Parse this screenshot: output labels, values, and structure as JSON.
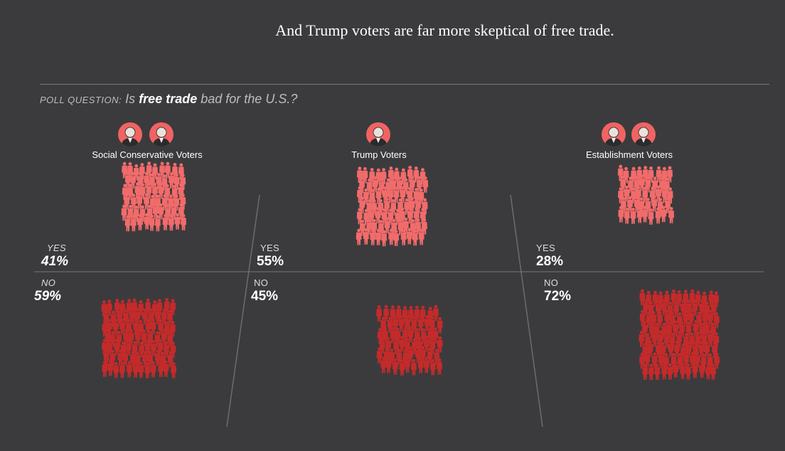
{
  "headline": "And Trump voters are far more skeptical of free trade.",
  "question": {
    "label": "POLL QUESTION:",
    "text_before": "Is",
    "bold": "free trade",
    "text_after": "bad for the U.S.?"
  },
  "colors": {
    "background": "#3b3b3d",
    "yes": "#f26b6b",
    "no": "#c52a2a",
    "divider": "#6c6c6f"
  },
  "chart_data": {
    "type": "pictogram",
    "title": "Is free trade bad for the U.S.?",
    "answers": [
      "YES",
      "NO"
    ],
    "groups": [
      {
        "name": "Social Conservative Voters",
        "portraits": 2,
        "yes_pct": 41,
        "no_pct": 59,
        "yes_label": "YES",
        "no_label": "NO",
        "yes_value": "41%",
        "no_value": "59%"
      },
      {
        "name": "Trump Voters",
        "portraits": 1,
        "yes_pct": 55,
        "no_pct": 45,
        "yes_label": "YES",
        "no_label": "NO",
        "yes_value": "55%",
        "no_value": "45%"
      },
      {
        "name": "Establishment Voters",
        "portraits": 2,
        "yes_pct": 28,
        "no_pct": 72,
        "yes_label": "YES",
        "no_label": "NO",
        "yes_value": "28%",
        "no_value": "72%"
      }
    ]
  }
}
